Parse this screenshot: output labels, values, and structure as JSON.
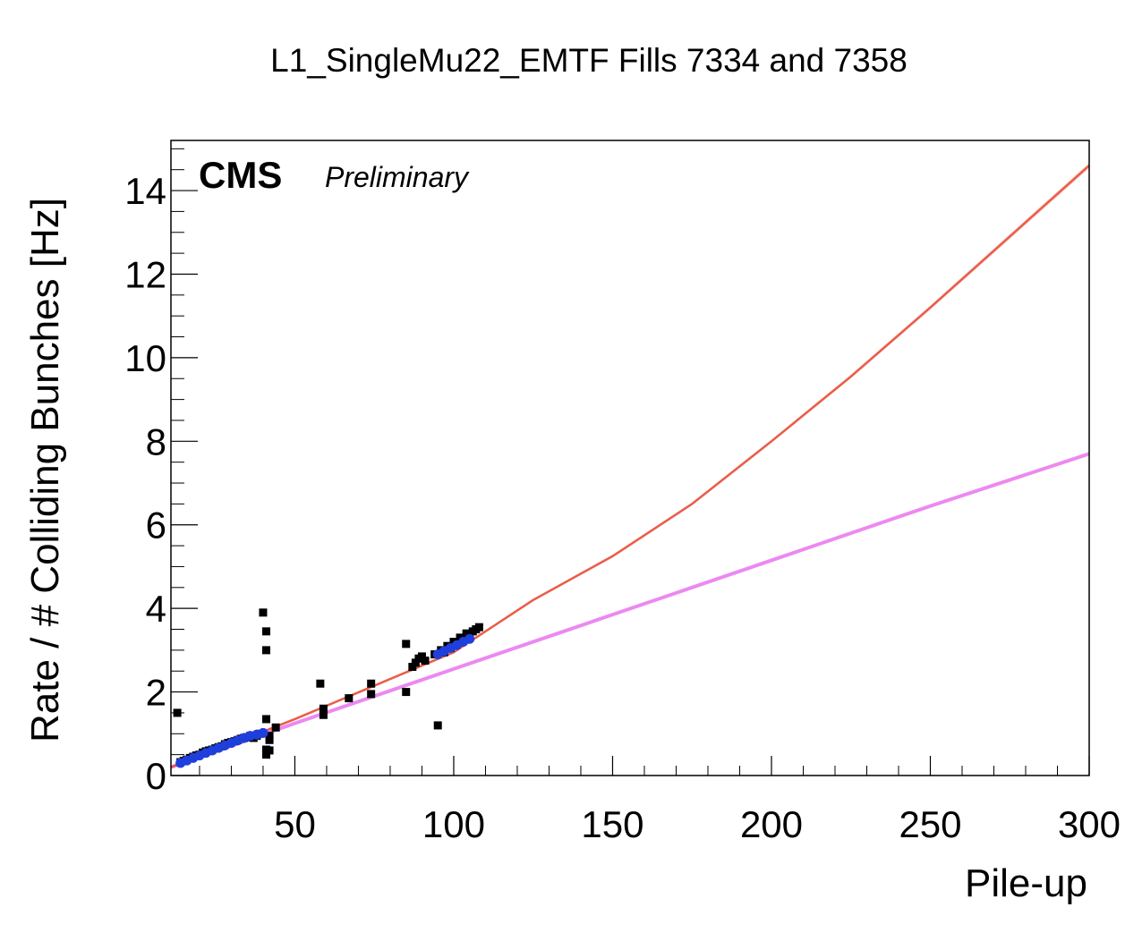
{
  "chart_data": {
    "type": "scatter",
    "title": "L1_SingleMu22_EMTF Fills 7334 and 7358",
    "xlabel": "Pile-up",
    "ylabel": "Rate / # Colliding Bunches [Hz]",
    "xlim": [
      11,
      300
    ],
    "ylim": [
      0,
      15.2
    ],
    "x_ticks": [
      50,
      100,
      150,
      200,
      250,
      300
    ],
    "y_ticks": [
      0,
      2,
      4,
      6,
      8,
      10,
      12,
      14
    ],
    "grid": false,
    "legend": "none",
    "labels": {
      "experiment": "CMS",
      "status": "Preliminary"
    },
    "colors": {
      "data": "#000000",
      "fit_data": "#1f3fdc",
      "quadratic_fit": "#e8503a",
      "linear_fit": "#ea7cf0",
      "band": "#f5b5ac"
    },
    "series": [
      {
        "type": "scatter",
        "color": "#000000",
        "x": [
          13,
          14,
          15,
          16,
          17,
          18,
          19,
          20,
          21,
          22,
          23,
          24,
          25,
          26,
          27,
          28,
          29,
          30,
          31,
          32,
          33,
          34,
          35,
          36,
          37,
          38,
          39,
          40,
          41,
          41,
          41,
          41,
          41,
          42,
          42,
          42,
          44,
          58,
          59,
          59,
          67,
          74,
          74,
          85,
          85,
          87,
          88,
          89,
          90,
          91,
          94,
          95,
          96,
          97,
          98,
          99,
          100,
          101,
          102,
          103,
          104,
          105,
          106,
          107,
          108
        ],
        "y": [
          1.5,
          0.32,
          0.35,
          0.38,
          0.42,
          0.45,
          0.48,
          0.5,
          0.55,
          0.58,
          0.6,
          0.62,
          0.65,
          0.68,
          0.7,
          0.75,
          0.78,
          0.8,
          0.82,
          0.85,
          0.88,
          0.9,
          0.92,
          0.95,
          0.9,
          0.95,
          1.0,
          3.9,
          3.45,
          3.0,
          1.35,
          0.62,
          0.5,
          0.85,
          0.6,
          0.95,
          1.15,
          2.2,
          1.6,
          1.45,
          1.85,
          2.2,
          1.95,
          3.15,
          2.0,
          2.6,
          2.7,
          2.8,
          2.85,
          2.75,
          2.9,
          1.2,
          3.0,
          2.95,
          3.1,
          3.05,
          3.2,
          3.15,
          3.3,
          3.25,
          3.4,
          3.35,
          3.45,
          3.5,
          3.55
        ]
      },
      {
        "type": "scatter",
        "color": "#1f3fdc",
        "x": [
          14,
          16,
          18,
          20,
          22,
          24,
          26,
          28,
          30,
          32,
          34,
          36,
          38,
          40,
          95,
          97,
          99,
          101,
          103,
          105
        ],
        "y": [
          0.3,
          0.36,
          0.42,
          0.48,
          0.54,
          0.6,
          0.66,
          0.72,
          0.78,
          0.84,
          0.9,
          0.95,
          0.98,
          1.02,
          2.9,
          2.98,
          3.05,
          3.12,
          3.2,
          3.27
        ]
      },
      {
        "type": "line",
        "color": "#e8503a",
        "x": [
          11,
          30,
          50,
          75,
          100,
          125,
          150,
          175,
          200,
          225,
          250,
          275,
          300
        ],
        "y": [
          0.2,
          0.75,
          1.35,
          2.15,
          2.95,
          4.2,
          5.25,
          6.5,
          8.0,
          9.55,
          11.2,
          12.9,
          14.6
        ]
      },
      {
        "type": "line",
        "color": "#ea7cf0",
        "x": [
          11,
          50,
          100,
          150,
          200,
          250,
          300
        ],
        "y": [
          0.2,
          1.25,
          2.55,
          3.85,
          5.15,
          6.45,
          7.7
        ]
      }
    ]
  }
}
